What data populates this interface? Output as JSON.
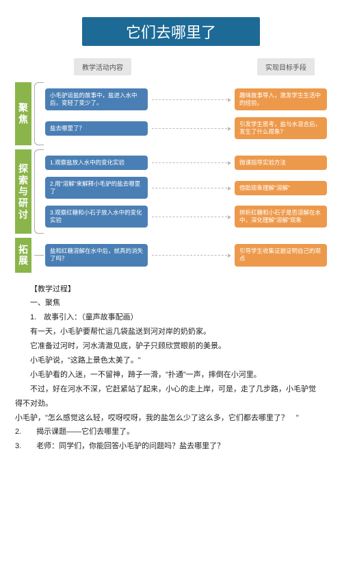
{
  "title": "它们去哪里了",
  "columnHeaders": {
    "left": "教学活动内容",
    "right": "实现目标手段"
  },
  "sections": [
    {
      "label": "聚焦",
      "rows": [
        {
          "left": "小毛驴运盐的故事中，盐进入水中后，变轻了变少了。",
          "right": "趣味故事导入，激发学生生活中的经验。"
        },
        {
          "left": "盐去哪里了？",
          "right": "引发学生思考，盐与水混合后，发生了什么现象？"
        }
      ]
    },
    {
      "label": "探索与研讨",
      "rows": [
        {
          "left": "1.观察盐放入水中的变化实验",
          "right": "微课指导实验方法"
        },
        {
          "left": "2.用\"溶解\"来解释小毛驴的盐去哪里了",
          "right": "借助现象理解\"溶解\""
        },
        {
          "left": "3.观察红糖和小石子放入水中的变化实验",
          "right": "辨析红糖和小石子是否溶解在水中，深化理解\"溶解\"现象"
        }
      ]
    },
    {
      "label": "拓展",
      "rows": [
        {
          "left": "盐和红糖溶解在水中后，就真的消失了吗？",
          "right": "引导学生收集证据证明自己的观点"
        }
      ]
    }
  ],
  "body": {
    "line1": "【教学过程】",
    "line2": "一、聚焦",
    "line3": "1.　故事引入：（童声故事配画）",
    "line4": "有一天，小毛驴要帮忙运几袋盐送到河对岸的奶奶家。",
    "line5": "它准备过河时，河水清澈见底，驴子只顾欣赏眼前的美景。",
    "line6": "小毛驴说，\"这路上景色太美了。\"",
    "line7": "小毛驴看的入迷，一不留神，蹄子一滑，\"扑通\"一声，摔倒在小河里。",
    "line8": "不过，好在河水不深，它赶紧站了起来，小心的走上岸，可是，走了几步路，小毛驴觉　得不对劲。",
    "line9": "小毛驴，\"怎么感觉这么轻，哎呀哎呀，我的盐怎么少了这么多，它们都去哪里了？　\"",
    "line10": "2.　　揭示课题——它们去哪里了。",
    "line11": "3.　　老师：同学们，你能回答小毛驴的问题吗？盐去哪里了？"
  },
  "colors": {
    "titleBg": "#1d6a96",
    "sectionBg": "#8ab54a",
    "blueBox": "#4a7fb5",
    "orangeBox": "#ed994b",
    "headerBg": "#e6e6e6"
  }
}
